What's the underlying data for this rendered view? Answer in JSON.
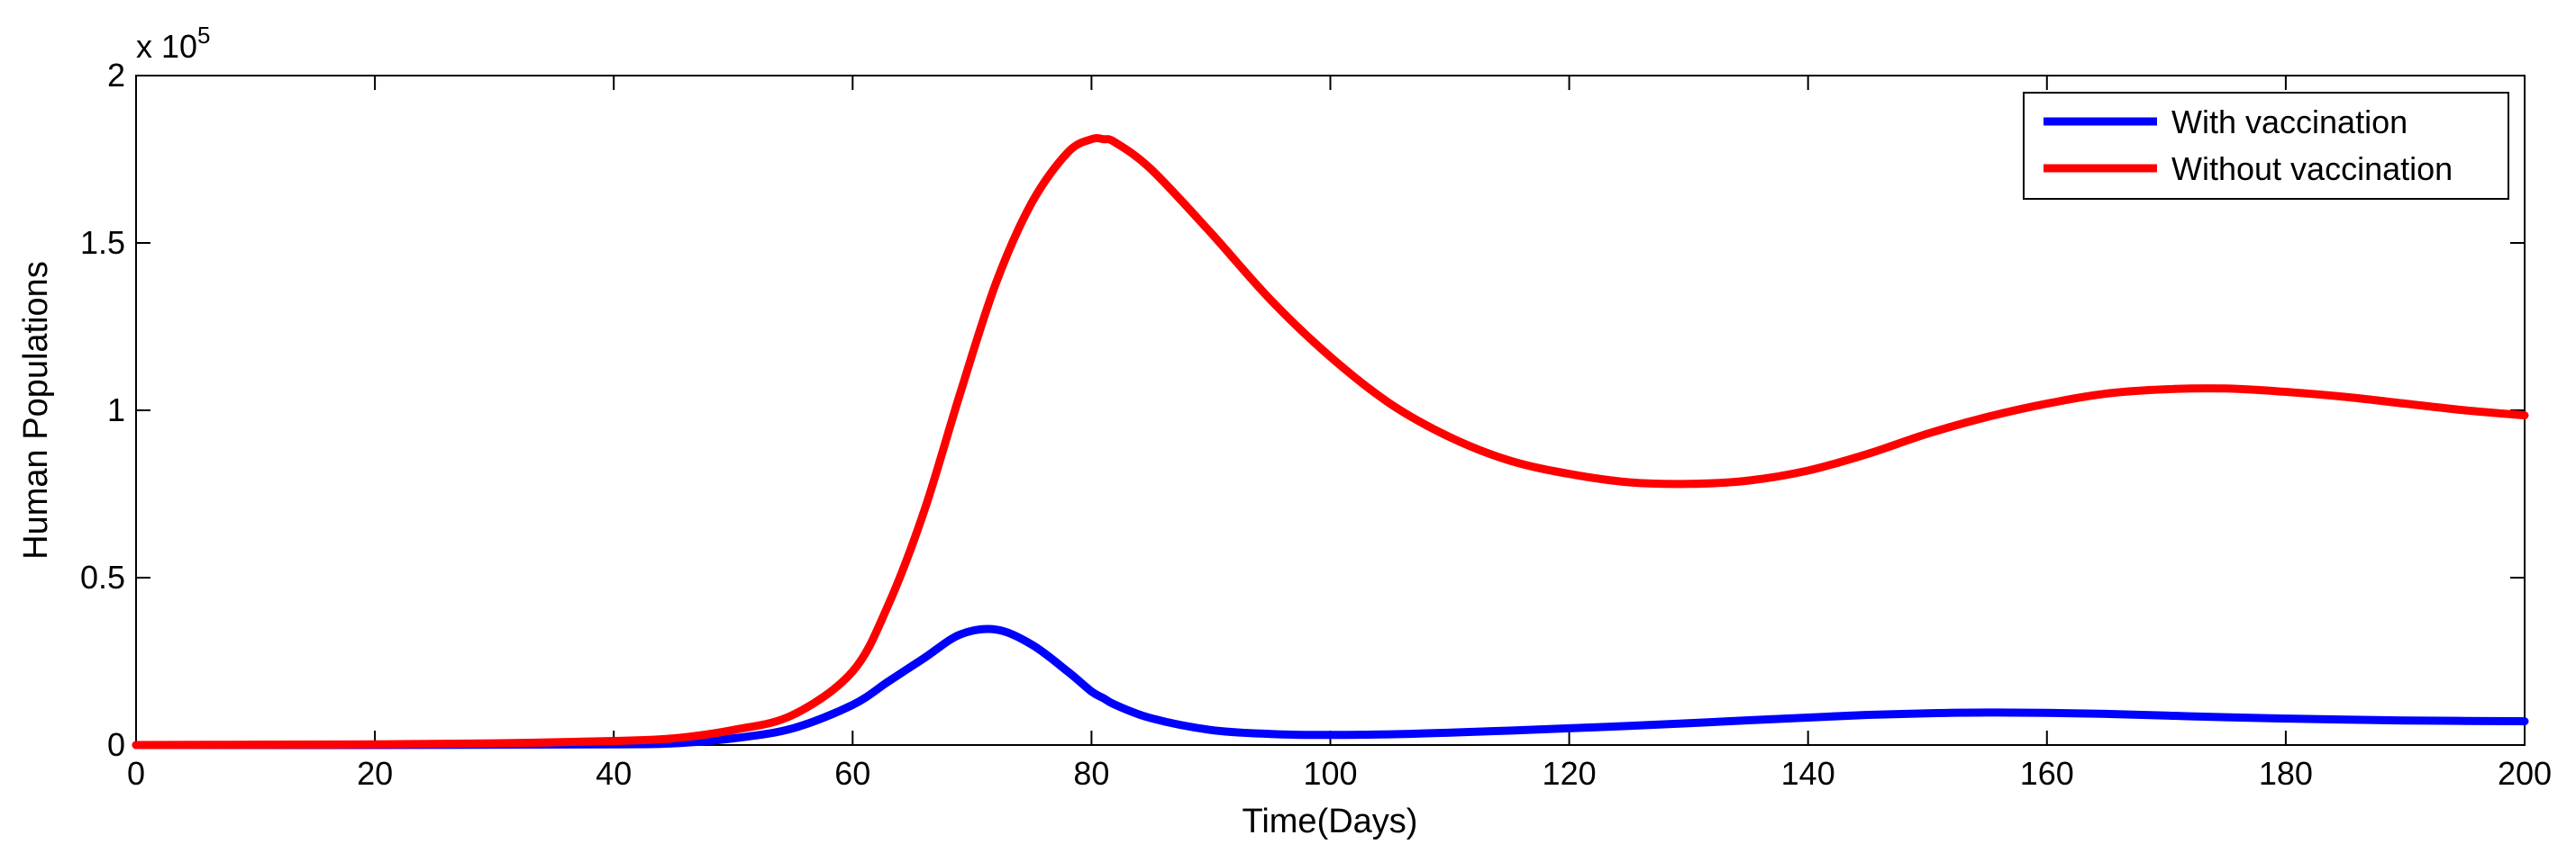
{
  "chart_data": {
    "type": "line",
    "title": "",
    "xlabel": "Time(Days)",
    "ylabel": "Human Populations",
    "y_exponent_label": "x 10",
    "y_exponent_power": "5",
    "xlim": [
      0,
      200
    ],
    "ylim": [
      0,
      2
    ],
    "x_ticks": [
      0,
      20,
      40,
      60,
      80,
      100,
      120,
      140,
      160,
      180,
      200
    ],
    "x_tick_labels": [
      "0",
      "20",
      "40",
      "60",
      "80",
      "100",
      "120",
      "140",
      "160",
      "180",
      "200"
    ],
    "y_ticks": [
      0,
      0.5,
      1,
      1.5,
      2
    ],
    "y_tick_labels": [
      "0",
      "0.5",
      "1",
      "1.5",
      "2"
    ],
    "grid": false,
    "legend_position": "top-right",
    "x": [
      0,
      10,
      20,
      30,
      40,
      45,
      50,
      55,
      60,
      63,
      66,
      69,
      72,
      75,
      78,
      80,
      81,
      82,
      85,
      90,
      95,
      100,
      105,
      110,
      115,
      120,
      125,
      130,
      135,
      140,
      145,
      150,
      155,
      160,
      165,
      170,
      175,
      180,
      185,
      190,
      195,
      200
    ],
    "series": [
      {
        "name": "With vaccination",
        "color": "#0000ff",
        "values": [
          0,
          0,
          0,
          0.001,
          0.002,
          0.005,
          0.02,
          0.05,
          0.12,
          0.19,
          0.26,
          0.33,
          0.345,
          0.3,
          0.22,
          0.16,
          0.14,
          0.12,
          0.08,
          0.045,
          0.033,
          0.03,
          0.032,
          0.037,
          0.043,
          0.05,
          0.057,
          0.065,
          0.074,
          0.082,
          0.09,
          0.095,
          0.097,
          0.096,
          0.093,
          0.088,
          0.083,
          0.079,
          0.076,
          0.073,
          0.072,
          0.071
        ]
      },
      {
        "name": "Without vaccination",
        "color": "#ff0000",
        "values": [
          0,
          0.001,
          0.002,
          0.005,
          0.012,
          0.02,
          0.045,
          0.09,
          0.22,
          0.42,
          0.7,
          1.05,
          1.38,
          1.62,
          1.77,
          1.81,
          1.81,
          1.8,
          1.72,
          1.53,
          1.33,
          1.16,
          1.02,
          0.92,
          0.85,
          0.81,
          0.785,
          0.78,
          0.79,
          0.82,
          0.87,
          0.93,
          0.98,
          1.02,
          1.05,
          1.063,
          1.065,
          1.055,
          1.04,
          1.02,
          1.0,
          0.985
        ]
      }
    ]
  }
}
